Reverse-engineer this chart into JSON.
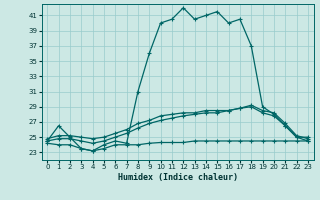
{
  "title": "",
  "xlabel": "Humidex (Indice chaleur)",
  "background_color": "#cce8e4",
  "grid_color": "#99cccc",
  "line_color": "#006666",
  "xlim": [
    -0.5,
    23.5
  ],
  "ylim": [
    22.0,
    42.5
  ],
  "xticks": [
    0,
    1,
    2,
    3,
    4,
    5,
    6,
    7,
    8,
    9,
    10,
    11,
    12,
    13,
    14,
    15,
    16,
    17,
    18,
    19,
    20,
    21,
    22,
    23
  ],
  "yticks": [
    23,
    25,
    27,
    29,
    31,
    33,
    35,
    37,
    39,
    41
  ],
  "line1_x": [
    0,
    1,
    2,
    3,
    4,
    5,
    6,
    7,
    8,
    9,
    10,
    11,
    12,
    13,
    14,
    15,
    16,
    17,
    18,
    19,
    20,
    21,
    22,
    23
  ],
  "line1_y": [
    24.5,
    26.5,
    25.0,
    23.5,
    23.2,
    24.0,
    24.5,
    24.2,
    31.0,
    36.0,
    40.0,
    40.5,
    42.0,
    40.5,
    41.0,
    41.5,
    40.0,
    40.5,
    37.0,
    29.0,
    28.0,
    26.5,
    25.0,
    25.0
  ],
  "line2_x": [
    0,
    1,
    2,
    3,
    4,
    5,
    6,
    7,
    8,
    9,
    10,
    11,
    12,
    13,
    14,
    15,
    16,
    17,
    18,
    19,
    20,
    21,
    22,
    23
  ],
  "line2_y": [
    24.8,
    25.2,
    25.2,
    25.0,
    24.8,
    25.0,
    25.5,
    26.0,
    26.8,
    27.2,
    27.8,
    28.0,
    28.2,
    28.2,
    28.5,
    28.5,
    28.5,
    28.8,
    29.2,
    28.5,
    28.2,
    26.8,
    25.2,
    24.8
  ],
  "line3_x": [
    0,
    1,
    2,
    3,
    4,
    5,
    6,
    7,
    8,
    9,
    10,
    11,
    12,
    13,
    14,
    15,
    16,
    17,
    18,
    19,
    20,
    21,
    22,
    23
  ],
  "line3_y": [
    24.5,
    24.8,
    24.8,
    24.5,
    24.2,
    24.5,
    25.0,
    25.5,
    26.2,
    26.8,
    27.2,
    27.5,
    27.8,
    28.0,
    28.2,
    28.2,
    28.5,
    28.8,
    29.0,
    28.2,
    27.8,
    26.5,
    25.0,
    24.5
  ],
  "line4_x": [
    0,
    1,
    2,
    3,
    4,
    5,
    6,
    7,
    8,
    9,
    10,
    11,
    12,
    13,
    14,
    15,
    16,
    17,
    18,
    19,
    20,
    21,
    22,
    23
  ],
  "line4_y": [
    24.2,
    24.0,
    24.0,
    23.5,
    23.2,
    23.5,
    24.0,
    24.0,
    24.0,
    24.2,
    24.3,
    24.3,
    24.3,
    24.5,
    24.5,
    24.5,
    24.5,
    24.5,
    24.5,
    24.5,
    24.5,
    24.5,
    24.5,
    24.5
  ]
}
